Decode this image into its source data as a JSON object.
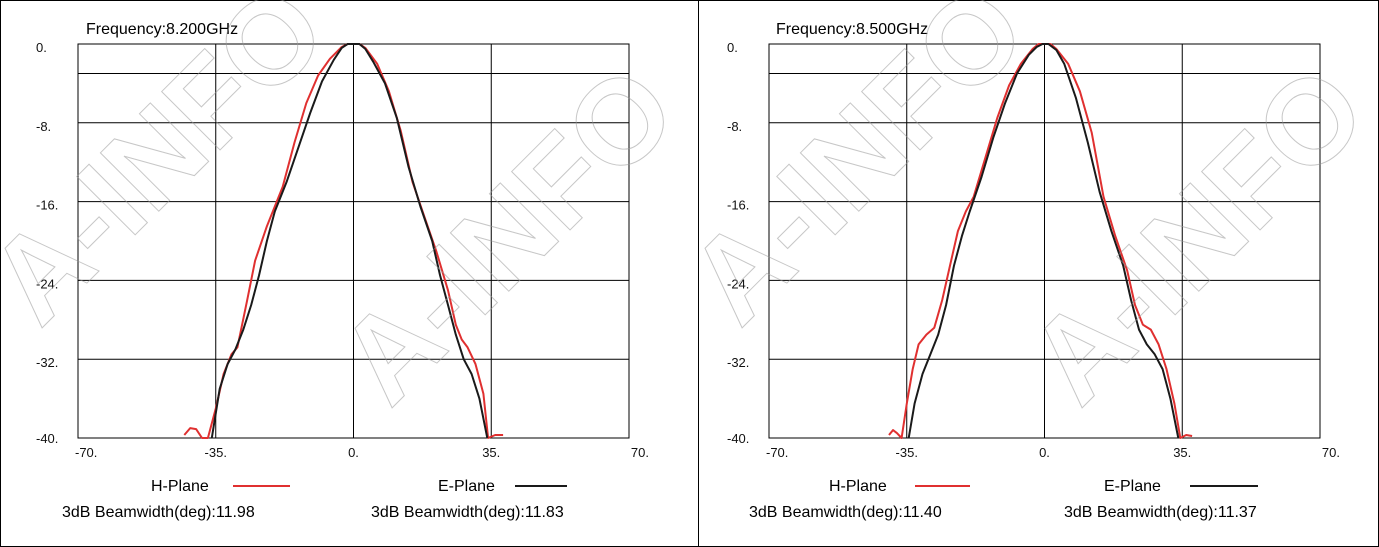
{
  "watermark": "A-INFO",
  "colors": {
    "h_plane": "#e03030",
    "e_plane": "#1a1a1a",
    "grid": "#000000"
  },
  "chart_data": [
    {
      "type": "line",
      "title": "Frequency:8.200GHz",
      "xlim": [
        -70,
        70
      ],
      "ylim": [
        -40,
        0
      ],
      "x_ticks": [
        "-70.",
        "-35.",
        "0.",
        "35.",
        "70."
      ],
      "y_ticks": [
        "0.",
        "-8.",
        "-16.",
        "-24.",
        "-32.",
        "-40."
      ],
      "grid": true,
      "legend": [
        {
          "name": "H-Plane",
          "beamwidth": "3dB Beamwidth(deg):11.98"
        },
        {
          "name": "E-Plane",
          "beamwidth": "3dB Beamwidth(deg):11.83"
        }
      ],
      "series": [
        {
          "name": "H-Plane",
          "color": "#e03030",
          "x": [
            -43,
            -41.5,
            -40,
            -38.5,
            -37,
            -35,
            -33,
            -31,
            -29.5,
            -27,
            -25,
            -22,
            -20,
            -18,
            -15,
            -12,
            -9,
            -6,
            -3,
            -1.5,
            0,
            1.5,
            3,
            6,
            9,
            12,
            15,
            18,
            21,
            24,
            26,
            27.5,
            29,
            31,
            33,
            34.2,
            36,
            38
          ],
          "y": [
            -39.7,
            -39,
            -39.1,
            -40,
            -40,
            -37,
            -33.5,
            -31.5,
            -30.8,
            -26,
            -22,
            -18.5,
            -16.5,
            -14.5,
            -10,
            -6,
            -3.2,
            -1.5,
            -0.3,
            0,
            0,
            0,
            -0.4,
            -2,
            -4.8,
            -8.8,
            -14,
            -17.5,
            -21,
            -25,
            -28.5,
            -30,
            -30.8,
            -32.5,
            -35.5,
            -40,
            -39.7,
            -39.7
          ]
        },
        {
          "name": "E-Plane",
          "color": "#1a1a1a",
          "x": [
            -36,
            -34,
            -32,
            -30,
            -28,
            -26,
            -24,
            -22,
            -20,
            -17,
            -14,
            -11,
            -8,
            -5,
            -3,
            -1.5,
            0,
            1.5,
            3,
            5,
            8,
            11,
            14,
            17,
            20,
            22,
            24,
            26,
            28,
            30,
            32,
            34
          ],
          "y": [
            -40,
            -35,
            -32.5,
            -31,
            -29,
            -26.5,
            -23.5,
            -20,
            -17,
            -14,
            -10.5,
            -7,
            -3.8,
            -1.6,
            -0.4,
            0,
            0,
            0,
            -0.5,
            -1.8,
            -4,
            -7.5,
            -12.5,
            -16.5,
            -20,
            -23.5,
            -26.5,
            -29.5,
            -32,
            -33.5,
            -36,
            -40
          ]
        }
      ]
    },
    {
      "type": "line",
      "title": "Frequency:8.500GHz",
      "xlim": [
        -70,
        70
      ],
      "ylim": [
        -40,
        0
      ],
      "x_ticks": [
        "-70.",
        "-35.",
        "0.",
        "35.",
        "70."
      ],
      "y_ticks": [
        "0.",
        "-8.",
        "-16.",
        "-24.",
        "-32.",
        "-40."
      ],
      "grid": true,
      "legend": [
        {
          "name": "H-Plane",
          "beamwidth": "3dB Beamwidth(deg):11.40"
        },
        {
          "name": "E-Plane",
          "beamwidth": "3dB Beamwidth(deg):11.37"
        }
      ],
      "series": [
        {
          "name": "H-Plane",
          "color": "#e03030",
          "x": [
            -39.5,
            -38.5,
            -37.5,
            -36.3,
            -35,
            -33.5,
            -32,
            -30,
            -28,
            -26,
            -24,
            -22,
            -20,
            -18,
            -15,
            -12,
            -9,
            -6,
            -3,
            -1.5,
            0,
            1.5,
            3,
            6,
            9,
            12,
            15,
            18,
            21,
            23,
            25,
            27,
            29,
            31,
            33,
            34.5,
            36,
            37.5
          ],
          "y": [
            -39.7,
            -39.2,
            -39.5,
            -40,
            -36.5,
            -33,
            -30.5,
            -29.5,
            -28.8,
            -26,
            -22.5,
            -19,
            -17,
            -15.5,
            -11.5,
            -7.5,
            -4.2,
            -2,
            -0.5,
            0,
            0,
            0,
            -0.5,
            -2,
            -4.8,
            -9,
            -15.5,
            -19.5,
            -23,
            -26.5,
            -28.5,
            -29,
            -30.5,
            -33,
            -36.5,
            -40,
            -39.7,
            -39.8
          ]
        },
        {
          "name": "E-Plane",
          "color": "#1a1a1a",
          "x": [
            -34.5,
            -33,
            -31,
            -29,
            -27,
            -25,
            -23,
            -21,
            -19,
            -16,
            -13,
            -10,
            -7,
            -4,
            -2,
            -0.5,
            1,
            3,
            5,
            8,
            11,
            14,
            17,
            20,
            22,
            24,
            26,
            28,
            30,
            32,
            34
          ],
          "y": [
            -40,
            -36.5,
            -33.5,
            -31.5,
            -29.5,
            -26.5,
            -22.5,
            -19.5,
            -17,
            -13.5,
            -9.5,
            -6,
            -3,
            -1.1,
            -0.3,
            0,
            0,
            -0.6,
            -2,
            -5.5,
            -10,
            -15,
            -19,
            -22.5,
            -26,
            -29,
            -30.5,
            -31.5,
            -33,
            -36,
            -40
          ]
        }
      ]
    }
  ]
}
